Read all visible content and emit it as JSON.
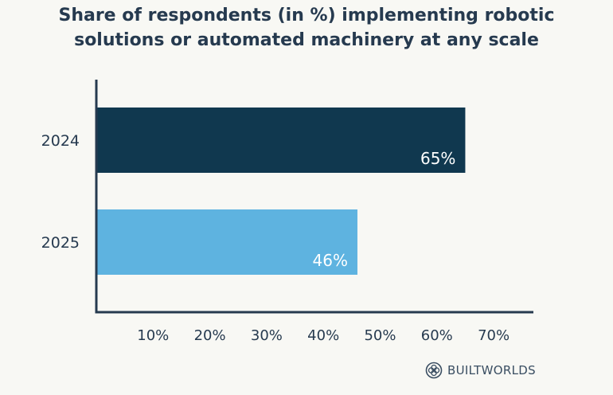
{
  "chart_data": {
    "type": "bar",
    "orientation": "horizontal",
    "title_lines": [
      "Share of respondents (in %) implementing robotic",
      "solutions or automated machinery at any scale"
    ],
    "categories": [
      "2024",
      "2025"
    ],
    "values": [
      65,
      46
    ],
    "data_labels": [
      "65%",
      "46%"
    ],
    "bar_colors": [
      "#10384f",
      "#5eb3e0"
    ],
    "x_ticks": [
      10,
      20,
      30,
      40,
      50,
      60,
      70
    ],
    "x_tick_labels": [
      "10%",
      "20%",
      "30%",
      "40%",
      "50%",
      "60%",
      "70%"
    ],
    "xlim": [
      0,
      77
    ],
    "grid": false,
    "axis_color": "#263a4f",
    "text_color": "#263a4f"
  },
  "brand": {
    "name": "BUILTWORLDS",
    "icon": "builtworlds-logo-icon"
  }
}
